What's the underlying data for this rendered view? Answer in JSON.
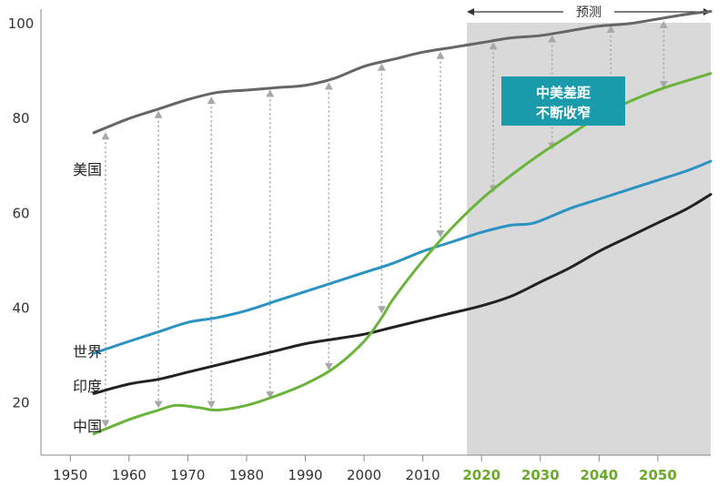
{
  "chart_data": {
    "type": "line",
    "title": "",
    "xlabel": "",
    "ylabel": "",
    "xlim": [
      1945,
      2059
    ],
    "ylim": [
      9,
      105
    ],
    "x_ticks": [
      1950,
      1960,
      1970,
      1980,
      1990,
      2000,
      2010,
      2020,
      2030,
      2040,
      2050
    ],
    "y_ticks": [
      20,
      40,
      60,
      80,
      100
    ],
    "forecast": {
      "label": "预测",
      "start_year": 2017.5,
      "end_year": 2059,
      "projected_ticks": [
        2020,
        2030,
        2040,
        2050
      ]
    },
    "annotation": {
      "lines": [
        "中美差距",
        "不断收窄"
      ],
      "color": "#1a9bab"
    },
    "grid": false,
    "series": [
      {
        "name": "美国",
        "color": "#666666",
        "x": [
          1954,
          1960,
          1965,
          1970,
          1975,
          1980,
          1985,
          1990,
          1995,
          2000,
          2005,
          2010,
          2015,
          2020,
          2025,
          2030,
          2035,
          2040,
          2045,
          2050,
          2055,
          2059
        ],
        "values": [
          77,
          80,
          82,
          84,
          85.5,
          86,
          86.5,
          87,
          88.5,
          91,
          92.5,
          94,
          95,
          96,
          97,
          97.5,
          98.5,
          99.5,
          100,
          101,
          102,
          102.6
        ]
      },
      {
        "name": "世界",
        "color": "#2a93c1",
        "x": [
          1954,
          1960,
          1965,
          1970,
          1975,
          1980,
          1985,
          1990,
          1995,
          2000,
          2005,
          2010,
          2015,
          2020,
          2025,
          2029,
          2035,
          2040,
          2045,
          2050,
          2055,
          2059
        ],
        "values": [
          30.5,
          33,
          35,
          37,
          38,
          39.5,
          41.5,
          43.5,
          45.5,
          47.5,
          49.5,
          52,
          54,
          56,
          57.5,
          58,
          61,
          63,
          65,
          67,
          69,
          71
        ]
      },
      {
        "name": "印度",
        "color": "#222222",
        "x": [
          1954,
          1960,
          1965,
          1970,
          1975,
          1980,
          1985,
          1990,
          1995,
          2000,
          2005,
          2010,
          2015,
          2020,
          2025,
          2030,
          2035,
          2040,
          2045,
          2050,
          2055,
          2059
        ],
        "values": [
          22,
          24,
          25,
          26.5,
          28,
          29.5,
          31,
          32.5,
          33.5,
          34.5,
          36,
          37.5,
          39,
          40.5,
          42.5,
          45.5,
          48.5,
          52,
          55,
          58,
          61,
          64
        ]
      },
      {
        "name": "中国",
        "color": "#6ab43c",
        "x": [
          1954,
          1960,
          1965,
          1968,
          1972,
          1975,
          1980,
          1985,
          1990,
          1995,
          2000,
          2003,
          2005,
          2010,
          2015,
          2020,
          2025,
          2030,
          2035,
          2040,
          2045,
          2050,
          2055,
          2059
        ],
        "values": [
          13.5,
          16.5,
          18.5,
          19.5,
          19,
          18.5,
          19.5,
          21.5,
          24,
          27.5,
          33,
          38,
          42,
          50,
          57,
          63,
          68,
          72.5,
          76.5,
          80.5,
          83.5,
          86,
          88,
          89.5
        ]
      }
    ],
    "gap_markers": [
      {
        "x": 1956,
        "top": 77.5,
        "bottom": 14.5
      },
      {
        "x": 1965,
        "top": 82,
        "bottom": 18.5
      },
      {
        "x": 1974,
        "top": 85,
        "bottom": 18.5
      },
      {
        "x": 1984,
        "top": 86.5,
        "bottom": 20.5
      },
      {
        "x": 1994,
        "top": 88,
        "bottom": 26.5
      },
      {
        "x": 2003,
        "top": 92,
        "bottom": 38.5
      },
      {
        "x": 2013,
        "top": 94.5,
        "bottom": 54.5
      },
      {
        "x": 2022,
        "top": 96.5,
        "bottom": 64
      },
      {
        "x": 2032,
        "top": 98,
        "bottom": 73
      },
      {
        "x": 2042,
        "top": 100,
        "bottom": 81
      },
      {
        "x": 2051,
        "top": 101,
        "bottom": 86
      }
    ]
  }
}
